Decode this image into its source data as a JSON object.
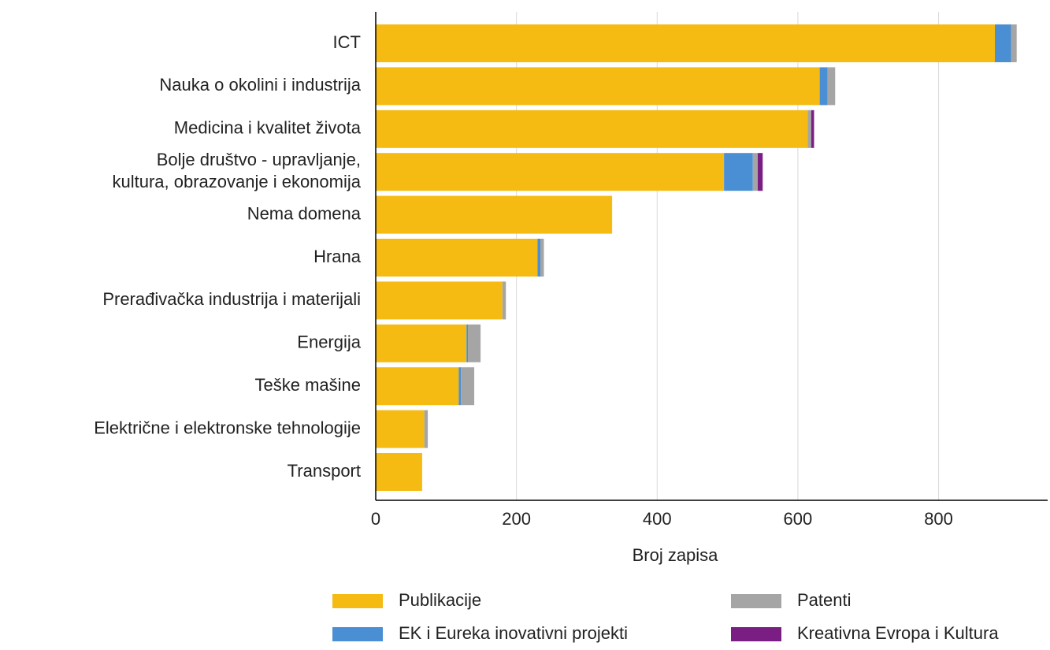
{
  "chart_data": {
    "type": "hbar_stacked",
    "xlabel": "Broj zapisa",
    "categories": [
      "ICT",
      "Nauka o okolini i industrija",
      "Medicina i kvalitet života",
      "Bolje društvo - upravljanje,\nkultura, obrazovanje i ekonomija",
      "Nema domena",
      "Hrana",
      "Prerađivačka industrija i materijali",
      "Energija",
      "Teške mašine",
      "Električne i elektronske tehnologije",
      "Transport"
    ],
    "series": [
      {
        "name": "Publikacije",
        "color": "#f5bb12",
        "values": [
          880,
          631,
          614,
          495,
          336,
          230,
          180,
          129,
          118,
          69,
          66
        ]
      },
      {
        "name": "EK i Eureka inovativni projekti",
        "color": "#4a8fd4",
        "values": [
          23,
          11,
          0,
          41,
          0,
          4,
          0,
          2,
          3,
          0,
          0
        ]
      },
      {
        "name": "Patenti",
        "color": "#a5a5a5",
        "values": [
          8,
          11,
          5,
          7,
          0,
          5,
          5,
          18,
          19,
          5,
          0
        ]
      },
      {
        "name": "Kreativna Evropa i Kultura",
        "color": "#7b1e84",
        "values": [
          0,
          0,
          4,
          7,
          0,
          0,
          0,
          0,
          0,
          0,
          0
        ]
      }
    ],
    "xlim": [
      0,
      955
    ],
    "xticks": [
      0,
      200,
      400,
      600,
      800
    ],
    "grid": true
  }
}
